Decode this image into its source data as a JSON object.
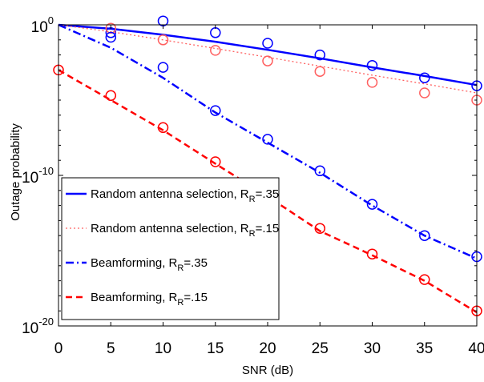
{
  "chart_data": {
    "type": "line",
    "xlabel": "SNR (dB)",
    "ylabel": "Outage probability",
    "xlim": [
      0,
      40
    ],
    "ylim": [
      1e-20,
      1
    ],
    "yscale": "log",
    "x_ticks": [
      0,
      5,
      10,
      15,
      20,
      25,
      30,
      35,
      40
    ],
    "x_tick_labels": [
      "0",
      "5",
      "10",
      "15",
      "20",
      "25",
      "30",
      "35",
      "40"
    ],
    "y_ticks": [
      {
        "value": 1,
        "base": "10",
        "exp": "0"
      },
      {
        "value": 1e-10,
        "base": "10",
        "exp": "-10"
      },
      {
        "value": 1e-20,
        "base": "10",
        "exp": "-20"
      }
    ],
    "grid": false,
    "legend_position": "bottom-left",
    "series": [
      {
        "name": "Random antenna selection, R",
        "name_sub": "R",
        "name_tail": "=.35",
        "color": "#0000ff",
        "style": "solid",
        "line": {
          "x": [
            0,
            5,
            10,
            15,
            20,
            25,
            30,
            35,
            40
          ],
          "y": [
            1,
            0.55,
            0.22,
            0.075,
            0.022,
            0.006,
            0.0015,
            0.0004,
            0.0001
          ]
        },
        "markers": {
          "x": [
            5,
            10,
            15,
            20,
            25,
            30,
            35,
            40
          ],
          "y": [
            0.3,
            1.8,
            0.3,
            0.06,
            0.01,
            0.002,
            0.0003,
            9e-05
          ]
        }
      },
      {
        "name": "Random antenna selection, R",
        "name_sub": "R",
        "name_tail": "=.15",
        "color": "#ff6060",
        "style": "dotted",
        "line": {
          "x": [
            0,
            5,
            10,
            15,
            20,
            25,
            30,
            35,
            40
          ],
          "y": [
            1,
            0.35,
            0.1,
            0.027,
            0.007,
            0.0018,
            0.00045,
            0.00012,
            3e-05
          ]
        },
        "markers": {
          "x": [
            5,
            10,
            15,
            20,
            25,
            30,
            35,
            40
          ],
          "y": [
            0.6,
            0.1,
            0.02,
            0.004,
            0.0008,
            0.00015,
            3e-05,
            1e-05
          ]
        }
      },
      {
        "name": "Beamforming, R",
        "name_sub": "R",
        "name_tail": "=.35",
        "color": "#0000ff",
        "style": "dashdot",
        "line": {
          "x": [
            0,
            5,
            10,
            15,
            20,
            25,
            30,
            35,
            40
          ],
          "y": [
            1,
            0.03,
            0.0003,
            1.5e-06,
            1.5e-08,
            1.5e-10,
            1e-12,
            1e-14,
            3e-16
          ]
        },
        "markers": {
          "x": [
            5,
            10,
            15,
            20,
            25,
            30,
            35,
            40
          ],
          "y": [
            0.15,
            0.0015,
            2e-06,
            2.5e-08,
            2e-10,
            1.2e-12,
            1e-14,
            4e-16
          ]
        }
      },
      {
        "name": "Beamforming, R",
        "name_sub": "R",
        "name_tail": "=.15",
        "color": "#ff0000",
        "style": "dashed",
        "line": {
          "x": [
            0,
            5,
            10,
            15,
            20,
            25,
            30,
            35,
            40
          ],
          "y": [
            0.001,
            1e-05,
            1e-07,
            6e-10,
            4e-12,
            2e-14,
            5e-16,
            1e-17,
            8e-20
          ]
        },
        "markers": {
          "x": [
            0,
            5,
            10,
            15,
            20,
            25,
            30,
            35,
            40
          ],
          "y": [
            0.001,
            2e-05,
            1.5e-07,
            8e-10,
            5e-12,
            3e-14,
            6e-16,
            1.2e-17,
            1e-19
          ]
        }
      }
    ]
  }
}
